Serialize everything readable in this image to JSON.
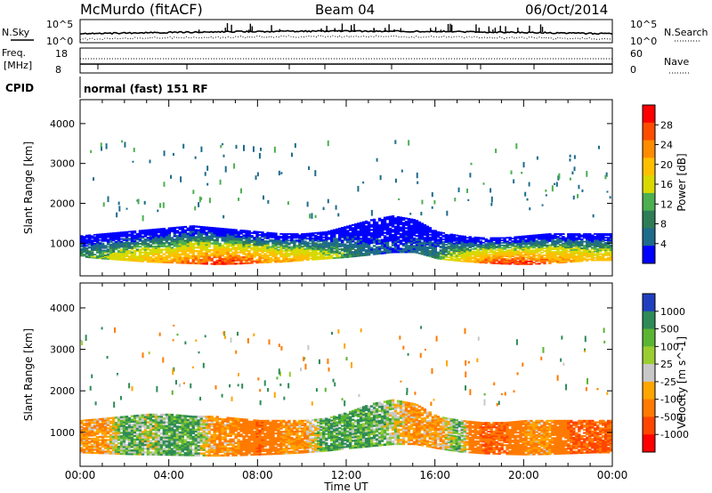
{
  "header": {
    "station": "McMurdo (fitACF)",
    "beam": "Beam 04",
    "date": "06/Oct/2014"
  },
  "top_panel": {
    "left_label": "N.Sky",
    "right_label": "N.Search",
    "left_ticks": [
      "10^5",
      "10^0"
    ],
    "right_ticks": [
      "10^5",
      "10^0"
    ]
  },
  "freq_panel": {
    "left_label_1": "Freq.",
    "left_label_2": "[MHz]",
    "right_label": "Nave",
    "left_ticks": [
      "18",
      "8"
    ],
    "right_ticks": [
      "60",
      "0"
    ]
  },
  "cpid": {
    "label": "CPID",
    "value": "normal (fast) 151 RF"
  },
  "chart_data": [
    {
      "type": "heatmap",
      "title": "",
      "xlabel": "Time UT",
      "ylabel": "Slant Range [km]",
      "xlim": [
        "00:00",
        "24:00"
      ],
      "ylim": [
        180,
        4600
      ],
      "x_ticks": [
        "00:00",
        "04:00",
        "08:00",
        "12:00",
        "16:00",
        "20:00",
        "00:00"
      ],
      "y_ticks": [
        1000,
        2000,
        3000,
        4000
      ],
      "colorbar_label": "Power [dB]",
      "colorbar_ticks": [
        "28",
        "24",
        "20",
        "16",
        "12",
        "8",
        "4"
      ],
      "colorbar_colors": [
        "#ff0000",
        "#ff4d00",
        "#ff8c00",
        "#ffbf00",
        "#d9d900",
        "#4caf50",
        "#2e7d57",
        "#1e6b8c",
        "#0000ff"
      ],
      "band_lower_km": [
        650,
        600,
        560,
        520,
        500,
        480,
        460,
        470,
        500,
        520,
        560,
        600,
        640,
        700,
        760,
        760,
        600,
        540,
        500,
        470,
        460,
        480,
        520,
        560
      ],
      "band_upper_km": [
        1200,
        1250,
        1300,
        1350,
        1400,
        1450,
        1400,
        1350,
        1300,
        1250,
        1250,
        1300,
        1450,
        1600,
        1700,
        1600,
        1300,
        1200,
        1150,
        1150,
        1200,
        1250,
        1250,
        1250
      ],
      "band_peak_power_db": [
        14,
        16,
        20,
        22,
        24,
        26,
        28,
        28,
        26,
        24,
        22,
        18,
        14,
        10,
        8,
        10,
        14,
        20,
        26,
        28,
        28,
        26,
        24,
        22
      ]
    },
    {
      "type": "heatmap",
      "title": "",
      "xlabel": "Time UT",
      "ylabel": "Slant Range [km]",
      "xlim": [
        "00:00",
        "24:00"
      ],
      "ylim": [
        180,
        4600
      ],
      "x_ticks": [
        "00:00",
        "04:00",
        "08:00",
        "12:00",
        "16:00",
        "20:00",
        "00:00"
      ],
      "y_ticks": [
        1000,
        2000,
        3000,
        4000
      ],
      "colorbar_label": "Velocity [m s^-1]",
      "colorbar_ticks": [
        "1000",
        "500",
        "100",
        "25",
        "-25",
        "-100",
        "-500",
        "-1000"
      ],
      "colorbar_colors": [
        "#1f3fbf",
        "#2e8b57",
        "#5ab533",
        "#9acd32",
        "#c8c8c8",
        "#ffa500",
        "#ff7a00",
        "#ff4500",
        "#ff0000"
      ],
      "band_lower_km": [
        500,
        480,
        460,
        450,
        440,
        430,
        420,
        430,
        450,
        470,
        500,
        540,
        600,
        650,
        700,
        700,
        600,
        520,
        480,
        460,
        450,
        460,
        480,
        500
      ],
      "band_upper_km": [
        1300,
        1350,
        1400,
        1450,
        1450,
        1400,
        1400,
        1350,
        1300,
        1300,
        1300,
        1350,
        1500,
        1700,
        1800,
        1700,
        1400,
        1300,
        1250,
        1250,
        1300,
        1300,
        1300,
        1300
      ],
      "band_velocity": [
        -100,
        -100,
        100,
        25,
        100,
        100,
        -100,
        -100,
        -500,
        -100,
        -100,
        100,
        100,
        100,
        25,
        -100,
        -100,
        100,
        -500,
        -500,
        -100,
        -100,
        -500,
        -500
      ]
    }
  ]
}
